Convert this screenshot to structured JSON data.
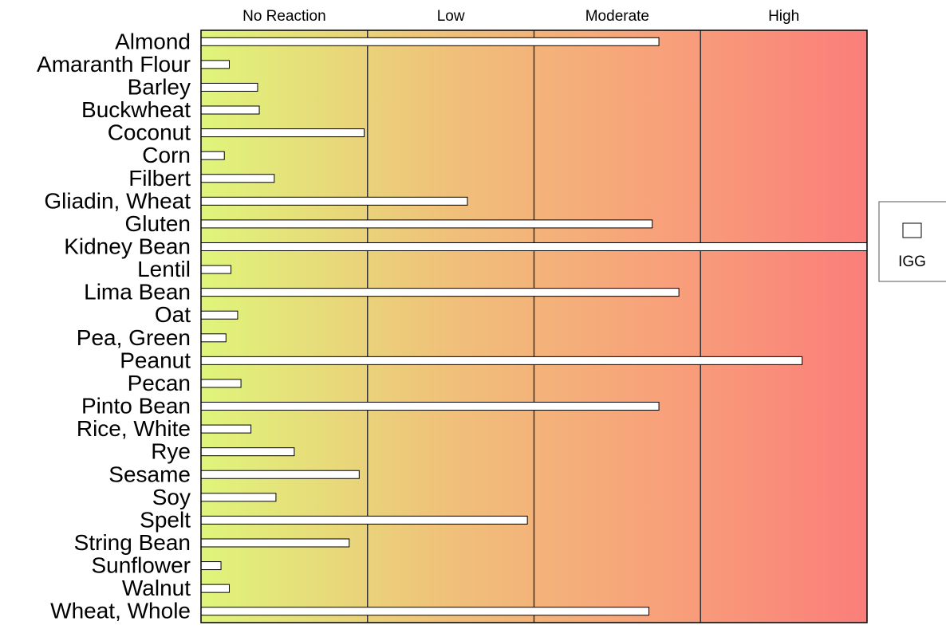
{
  "chart_data": {
    "type": "bar",
    "orientation": "horizontal",
    "zones": [
      "No Reaction",
      "Low",
      "Moderate",
      "High"
    ],
    "zone_colors": [
      "#dff57a",
      "#f0c07a",
      "#f8a07a",
      "#fa7e7a"
    ],
    "categories": [
      "Almond",
      "Amaranth Flour",
      "Barley",
      "Buckwheat",
      "Coconut",
      "Corn",
      "Filbert",
      "Gliadin, Wheat",
      "Gluten",
      "Kidney Bean",
      "Lentil",
      "Lima Bean",
      "Oat",
      "Pea, Green",
      "Peanut",
      "Pecan",
      "Pinto Bean",
      "Rice, White",
      "Rye",
      "Sesame",
      "Soy",
      "Spelt",
      "String Bean",
      "Sunflower",
      "Walnut",
      "Wheat, Whole"
    ],
    "series": [
      {
        "name": "IGG",
        "values": [
          2.75,
          0.17,
          0.34,
          0.35,
          0.98,
          0.14,
          0.44,
          1.6,
          2.71,
          4.0,
          0.18,
          2.87,
          0.22,
          0.15,
          3.61,
          0.24,
          2.75,
          0.3,
          0.56,
          0.95,
          0.45,
          1.96,
          0.89,
          0.12,
          0.17,
          2.69
        ]
      }
    ],
    "xlim": [
      0,
      4
    ],
    "grid": true,
    "legend": "right"
  }
}
